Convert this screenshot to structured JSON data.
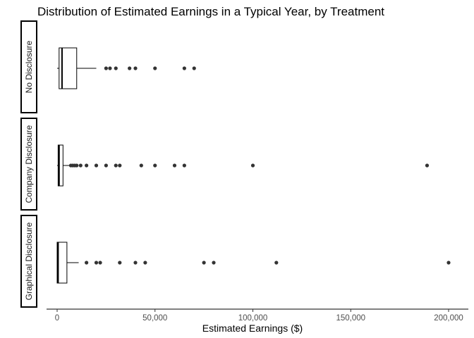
{
  "chart_data": {
    "type": "boxplot",
    "orientation": "horizontal",
    "title": "Distribution of Estimated Earnings in a Typical Year, by Treatment",
    "xlabel": "Estimated Earnings ($)",
    "ylabel": "",
    "xlim": [
      -10000,
      210000
    ],
    "xticks": [
      0,
      50000,
      100000,
      150000,
      200000
    ],
    "xtick_labels": [
      "0",
      "50,000",
      "100,000",
      "150,000",
      "200,000"
    ],
    "grid": false,
    "legend": "none",
    "panels": [
      {
        "name": "No Disclosure",
        "box": {
          "min": 0,
          "q1": 1000,
          "median": 2500,
          "q3": 10000,
          "whisker_high": 20000
        },
        "outliers": [
          25000,
          27000,
          30000,
          37000,
          40000,
          50000,
          65000,
          70000
        ]
      },
      {
        "name": "Company Disclosure",
        "box": {
          "min": 0,
          "q1": 500,
          "median": 1000,
          "q3": 3000,
          "whisker_high": 6500
        },
        "outliers": [
          7000,
          8000,
          9000,
          10000,
          12000,
          15000,
          20000,
          25000,
          30000,
          32000,
          43000,
          50000,
          60000,
          65000,
          100000,
          189000
        ]
      },
      {
        "name": "Graphical Disclosure",
        "box": {
          "min": 0,
          "q1": 0,
          "median": 500,
          "q3": 5000,
          "whisker_high": 11000
        },
        "outliers": [
          15000,
          20000,
          22000,
          32000,
          40000,
          45000,
          75000,
          80000,
          112000,
          200000
        ]
      }
    ],
    "colors": {
      "box_fill": "#ffffff",
      "box_stroke": "#000000",
      "point": "#333333",
      "axis_text": "#4d4d4d"
    }
  }
}
